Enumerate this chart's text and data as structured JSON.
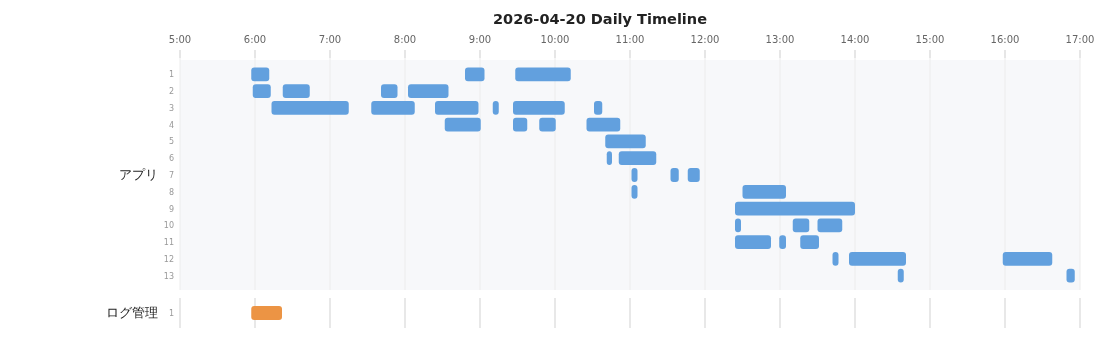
{
  "chart_data": [
    {
      "type": "bar",
      "orientation": "horizontal",
      "title": "2026-04-20 Daily Timeline",
      "ylabel": "アプリ",
      "categories": [
        "1",
        "2",
        "3",
        "4",
        "5",
        "6",
        "7",
        "8",
        "9",
        "10",
        "11",
        "12",
        "13"
      ],
      "xlim": [
        5,
        17
      ],
      "xticks": [
        {
          "value": 5,
          "label": "5:00"
        },
        {
          "value": 6,
          "label": "6:00"
        },
        {
          "value": 7,
          "label": "7:00"
        },
        {
          "value": 8,
          "label": "8:00"
        },
        {
          "value": 9,
          "label": "9:00"
        },
        {
          "value": 10,
          "label": "10:00"
        },
        {
          "value": 11,
          "label": "11:00"
        },
        {
          "value": 12,
          "label": "12:00"
        },
        {
          "value": 13,
          "label": "13:00"
        },
        {
          "value": 14,
          "label": "14:00"
        },
        {
          "value": 15,
          "label": "15:00"
        },
        {
          "value": 16,
          "label": "16:00"
        },
        {
          "value": 17,
          "label": "17:00"
        }
      ],
      "grid": "x",
      "series": [
        {
          "color": "#62a0de",
          "base": [
            5.95,
            5.97,
            6.22,
            8.53,
            10.67,
            10.69,
            11.02,
            11.02,
            12.4,
            12.4,
            12.4,
            13.7,
            14.57
          ],
          "values": [
            0.24,
            0.24,
            1.03,
            0.48,
            0.54,
            0.07,
            0.08,
            0.08,
            1.6,
            0.08,
            0.48,
            0.08,
            0.08
          ]
        },
        {
          "color": "#62a0de",
          "base": [
            8.8,
            6.37,
            7.55,
            9.44,
            null,
            10.85,
            11.54,
            12.5,
            null,
            13.17,
            12.99,
            13.92,
            16.82
          ],
          "values": [
            0.26,
            0.36,
            0.58,
            0.19,
            null,
            0.5,
            0.11,
            0.58,
            null,
            0.22,
            0.09,
            0.76,
            0.11
          ]
        },
        {
          "color": "#62a0de",
          "base": [
            9.47,
            7.68,
            8.4,
            9.79,
            null,
            null,
            11.77,
            null,
            null,
            13.5,
            13.27,
            15.97,
            null
          ],
          "values": [
            0.74,
            0.22,
            0.58,
            0.22,
            null,
            null,
            0.16,
            null,
            null,
            0.33,
            0.25,
            0.66,
            null
          ]
        },
        {
          "color": "#62a0de",
          "base": [
            null,
            8.04,
            9.17,
            10.42,
            null,
            null,
            null,
            null,
            null,
            null,
            null,
            null,
            null
          ],
          "values": [
            null,
            0.54,
            0.08,
            0.45,
            null,
            null,
            null,
            null,
            null,
            null,
            null,
            null,
            null
          ]
        },
        {
          "color": "#62a0de",
          "base": [
            null,
            null,
            9.44,
            null,
            null,
            null,
            null,
            null,
            null,
            null,
            null,
            null,
            null
          ],
          "values": [
            null,
            null,
            0.69,
            null,
            null,
            null,
            null,
            null,
            null,
            null,
            null,
            null,
            null
          ]
        },
        {
          "color": "#62a0de",
          "base": [
            null,
            null,
            10.52,
            null,
            null,
            null,
            null,
            null,
            null,
            null,
            null,
            null,
            null
          ],
          "values": [
            null,
            null,
            0.11,
            null,
            null,
            null,
            null,
            null,
            null,
            null,
            null,
            null,
            null
          ]
        }
      ]
    },
    {
      "type": "bar",
      "orientation": "horizontal",
      "ylabel": "ログ管理",
      "categories": [
        "1"
      ],
      "tick_labels": "y",
      "xlim": [
        5,
        17
      ],
      "xticks": [
        {
          "value": 5,
          "label": null
        },
        {
          "value": 6,
          "label": null
        },
        {
          "value": 7,
          "label": null
        },
        {
          "value": 8,
          "label": null
        },
        {
          "value": 9,
          "label": null
        },
        {
          "value": 10,
          "label": null
        },
        {
          "value": 11,
          "label": null
        },
        {
          "value": 12,
          "label": null
        },
        {
          "value": 13,
          "label": null
        },
        {
          "value": 14,
          "label": null
        },
        {
          "value": 15,
          "label": null
        },
        {
          "value": 16,
          "label": null
        },
        {
          "value": 17,
          "label": null
        }
      ],
      "grid": "x",
      "series": [
        {
          "color": "#ec9444",
          "base": [
            5.95
          ],
          "values": [
            0.41
          ]
        }
      ]
    }
  ]
}
